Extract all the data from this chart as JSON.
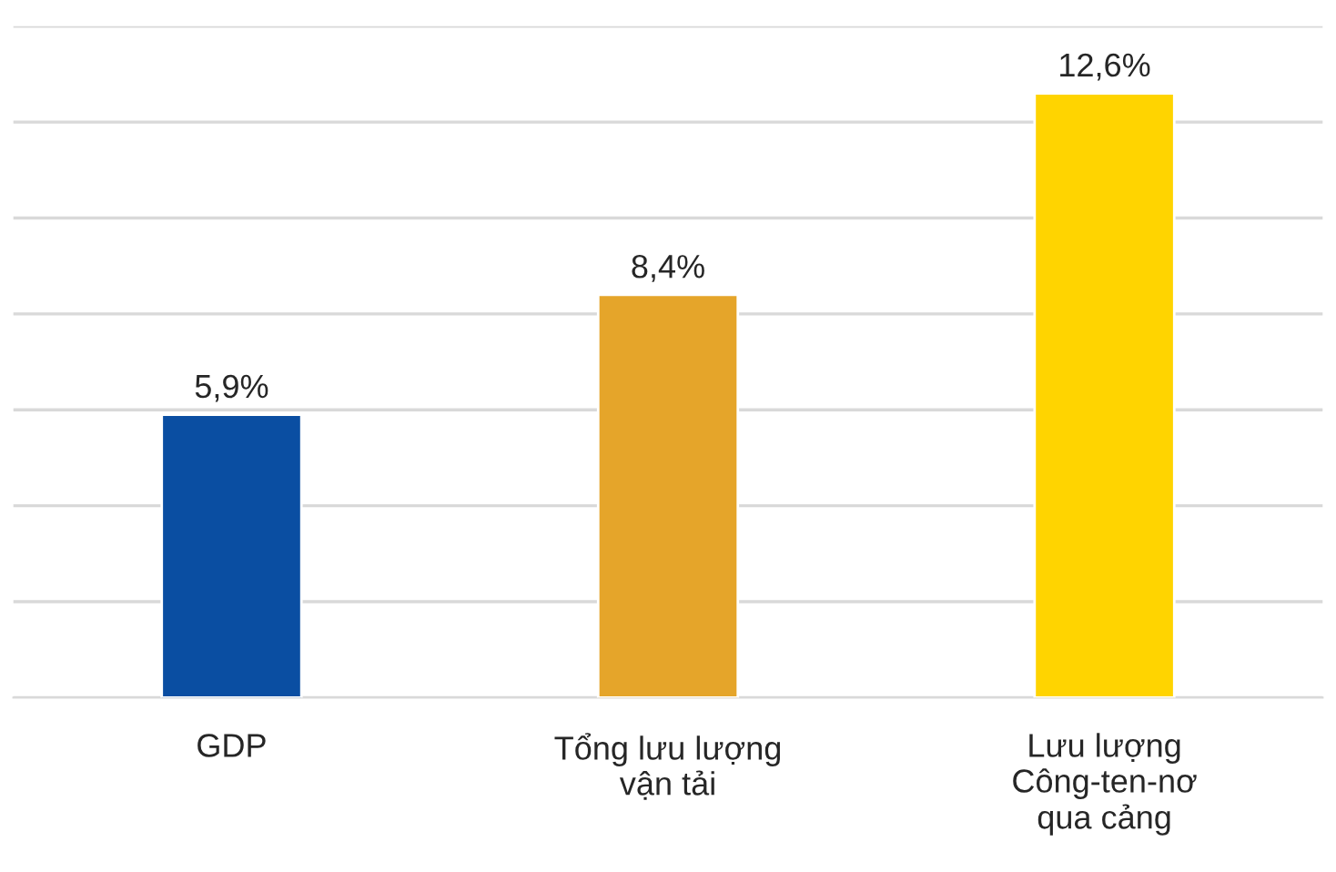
{
  "chart_data": {
    "type": "bar",
    "categories": [
      "GDP",
      "Tổng lưu lượng\nvận tải",
      "Lưu lượng\nCông-ten-nơ\nqua cảng"
    ],
    "values": [
      5.9,
      8.4,
      12.6
    ],
    "colors": [
      "#0a4ea2",
      "#e5a52a",
      "#ffd400"
    ],
    "value_labels": [
      "5,9%",
      "8,4%",
      "12,6%"
    ],
    "ylim": [
      0,
      14
    ],
    "yticks": [
      {
        "value": 0,
        "label": null
      },
      {
        "value": 2,
        "label": null
      },
      {
        "value": 4,
        "label": null
      },
      {
        "value": 6,
        "label": null
      },
      {
        "value": 8,
        "label": null
      },
      {
        "value": 10,
        "label": null
      },
      {
        "value": 12,
        "label": null
      },
      {
        "value": 14,
        "label": null
      }
    ],
    "grid": "y",
    "tick_labels": "x"
  }
}
